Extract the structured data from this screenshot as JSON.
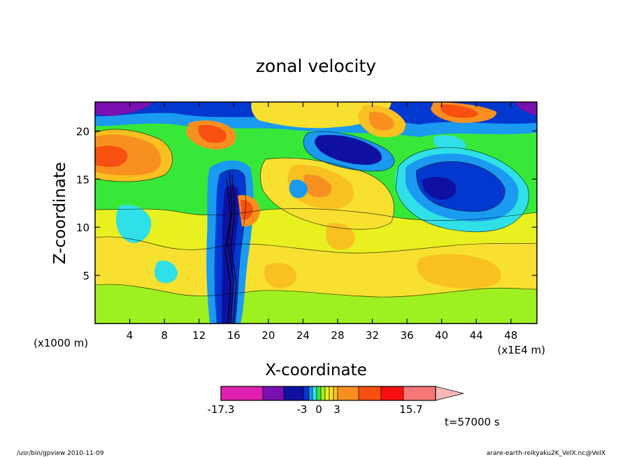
{
  "chart_data": {
    "type": "heatmap",
    "title": "zonal velocity",
    "xlabel": "X-coordinate",
    "ylabel": "Z-coordinate",
    "x_unit_label": "(x1E4 m)",
    "y_unit_label": "(x1000 m)",
    "xlim": [
      0,
      51
    ],
    "ylim": [
      0,
      23
    ],
    "x_ticks": [
      4,
      8,
      12,
      16,
      20,
      24,
      28,
      32,
      36,
      40,
      44,
      48
    ],
    "y_ticks": [
      5,
      10,
      15,
      20
    ],
    "colorbar": {
      "min_label": "-17.3",
      "max_label": "15.7",
      "tick_labels": [
        "-3",
        "0",
        "3"
      ],
      "colors": [
        "#e020b0",
        "#7a10b0",
        "#1010a0",
        "#0038d0",
        "#1a9af0",
        "#30e0e8",
        "#38e838",
        "#9ef020",
        "#e8f020",
        "#f8e030",
        "#f8c020",
        "#f89020",
        "#f85010",
        "#f81010",
        "#f87878",
        "#f8b8b8"
      ]
    },
    "time_label": "t=57000 s"
  },
  "footer": {
    "left": "/usr/bin/gpview  2010-11-09",
    "right": "arare-earth-reikyaku2K_VelX.nc@VelX"
  }
}
